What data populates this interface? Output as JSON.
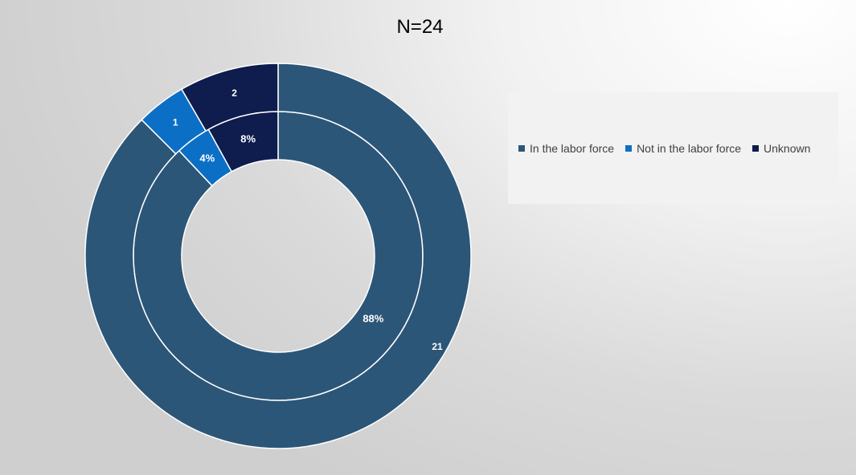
{
  "chart_data": {
    "type": "pie",
    "title": "N=24",
    "legend_position": "right",
    "categories": [
      "In the labor force",
      "Not in the labor force",
      "Unknown"
    ],
    "colors": [
      "#2c5678",
      "#0b6fc6",
      "#0e1c4e"
    ],
    "series": [
      {
        "ring": "inner",
        "values": [
          88,
          4,
          8
        ],
        "labels": [
          "88%",
          "4%",
          "8%"
        ]
      },
      {
        "ring": "outer",
        "values": [
          21,
          1,
          2
        ],
        "labels": [
          "21",
          "1",
          "2"
        ]
      }
    ]
  }
}
